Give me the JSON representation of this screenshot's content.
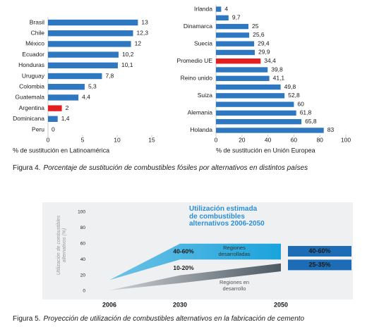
{
  "chart_data": [
    {
      "type": "hbar",
      "categories": [
        "Brasil",
        "Chile",
        "México",
        "Ecuador",
        "Honduras",
        "Uruguay",
        "Colombia",
        "Guatemala",
        "Argentina",
        "Dominicana",
        "Peru"
      ],
      "values": [
        13,
        12.3,
        12,
        10.2,
        10.1,
        7.8,
        5.3,
        4.4,
        2,
        1.4,
        0
      ],
      "value_labels": [
        "13",
        "12,3",
        "12",
        "10,2",
        "10,1",
        "7,8",
        "5,3",
        "4,4",
        "2",
        "1,4",
        "0"
      ],
      "colors": [
        "#2e78c2",
        "#2e78c2",
        "#2e78c2",
        "#2e78c2",
        "#2e78c2",
        "#2e78c2",
        "#2e78c2",
        "#2e78c2",
        "#e41e1e",
        "#2e78c2",
        "#2e78c2"
      ],
      "xlim": [
        0,
        15
      ],
      "xticks": [
        0,
        5,
        10,
        15
      ],
      "xlabel": "% de sustitución en Latinoamérica"
    },
    {
      "type": "hbar",
      "categories": [
        "Irlanda",
        null,
        "Dinamarca",
        null,
        "Suecia",
        null,
        "Promedio UE",
        null,
        "Reino unido",
        null,
        "Suiza",
        null,
        "Alemania",
        null,
        "Holanda"
      ],
      "values": [
        4,
        9.7,
        25,
        25.6,
        29.4,
        29.9,
        34.4,
        39.8,
        41.1,
        49.8,
        52.8,
        60,
        61.8,
        65.8,
        83
      ],
      "value_labels": [
        "4",
        "9,7",
        "25",
        "25,6",
        "29,4",
        "29,9",
        "34,4",
        "39,8",
        "41,1",
        "49,8",
        "52,8",
        "60",
        "61,8",
        "65,8",
        "83"
      ],
      "colors": [
        "#2e78c2",
        "#2e78c2",
        "#2e78c2",
        "#2e78c2",
        "#2e78c2",
        "#2e78c2",
        "#e41e1e",
        "#2e78c2",
        "#2e78c2",
        "#2e78c2",
        "#2e78c2",
        "#2e78c2",
        "#2e78c2",
        "#2e78c2",
        "#2e78c2"
      ],
      "xlim": [
        0,
        100
      ],
      "xticks": [
        0,
        20,
        40,
        60,
        80,
        100
      ],
      "xlabel": "% de sustitución en Unión Europea"
    },
    {
      "type": "range_area",
      "title": "Utilización estimada de combustibles alternativos 2006-2050",
      "ylabel": "Utilización de combustibles alternativos (%)",
      "categories": [
        "2006",
        "2030",
        "2050"
      ],
      "ylim": [
        0,
        100
      ],
      "yticks": [
        0,
        20,
        40,
        60,
        80,
        100
      ],
      "label_color": "#1c6db5",
      "series": [
        {
          "name": "Regiones desarrolladas",
          "color": "#1aa3dc",
          "lower": [
            14,
            40,
            40
          ],
          "upper": [
            14,
            60,
            60
          ],
          "range_labels": [
            null,
            "40-60%",
            "40-60%"
          ]
        },
        {
          "name": "Regiones en desarrollo",
          "color": "#4d5963",
          "lower": [
            1,
            10,
            25
          ],
          "upper": [
            1,
            20,
            35
          ],
          "range_labels": [
            null,
            "10-20%",
            "25-35%"
          ]
        }
      ]
    }
  ],
  "captions": [
    {
      "label": "Figura 4.",
      "text": "Porcentaje de sustitución de combustibles fósiles por alternativos en distintos países"
    },
    {
      "label": "Figura 5.",
      "text": "Proyección de utilización de combustibles alternativos en la fabricación de cemento"
    }
  ]
}
